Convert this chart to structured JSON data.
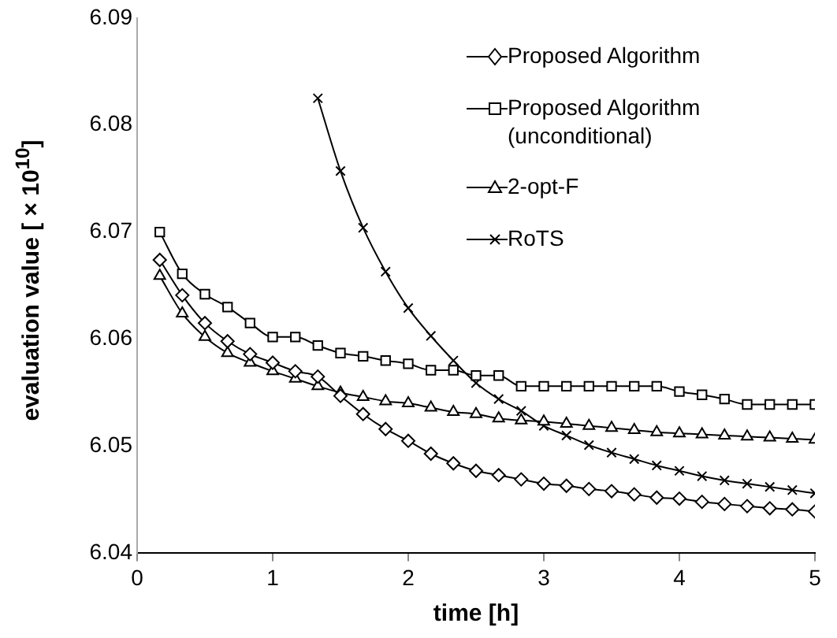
{
  "chart_data": {
    "type": "line",
    "xlabel": "time [h]",
    "ylabel": "evaluation value [ × 10$^{10}$]",
    "x": [
      0.167,
      0.333,
      0.5,
      0.667,
      0.833,
      1,
      1.167,
      1.333,
      1.5,
      1.667,
      1.833,
      2,
      2.167,
      2.333,
      2.5,
      2.667,
      2.833,
      3,
      3.167,
      3.333,
      3.5,
      3.667,
      3.833,
      4,
      4.167,
      4.333,
      4.5,
      4.667,
      4.833,
      5
    ],
    "series": [
      {
        "name": "Proposed Algorithm",
        "color": "#000000",
        "marker": "diamond",
        "values": [
          6.0674,
          6.0641,
          6.0615,
          6.0598,
          6.0586,
          6.0578,
          6.057,
          6.0565,
          6.0547,
          6.053,
          6.0516,
          6.0505,
          6.0493,
          6.0484,
          6.0477,
          6.0473,
          6.0469,
          6.0465,
          6.0463,
          6.046,
          6.0458,
          6.0455,
          6.0452,
          6.0451,
          6.0448,
          6.0446,
          6.0444,
          6.0442,
          6.0441,
          6.0439
        ]
      },
      {
        "name": "Proposed Algorithm (unconditional)",
        "color": "#000000",
        "marker": "square",
        "values": [
          6.07,
          6.0661,
          6.0642,
          6.063,
          6.0615,
          6.0602,
          6.0602,
          6.0594,
          6.0587,
          6.0584,
          6.058,
          6.0577,
          6.0571,
          6.0571,
          6.0566,
          6.0566,
          6.0556,
          6.0556,
          6.0556,
          6.0556,
          6.0556,
          6.0556,
          6.0556,
          6.0551,
          6.0548,
          6.0544,
          6.0539,
          6.0539,
          6.0539,
          6.0539
        ]
      },
      {
        "name": "2-opt-F",
        "color": "#000000",
        "marker": "triangle",
        "values": [
          6.0659,
          6.0624,
          6.0602,
          6.0587,
          6.0578,
          6.057,
          6.0563,
          6.0556,
          6.055,
          6.0546,
          6.0542,
          6.054,
          6.0536,
          6.0532,
          6.053,
          6.0526,
          6.0524,
          6.0523,
          6.0521,
          6.0519,
          6.0517,
          6.0515,
          6.0513,
          6.0512,
          6.0511,
          6.051,
          6.0509,
          6.0508,
          6.0507,
          6.0506
        ]
      },
      {
        "name": "RoTS",
        "color": "#000000",
        "marker": "cross",
        "values": [
          null,
          null,
          null,
          null,
          null,
          null,
          null,
          6.0825,
          6.0757,
          6.0704,
          6.0663,
          6.0629,
          6.0603,
          6.058,
          6.0559,
          6.0544,
          6.0533,
          6.0519,
          6.051,
          6.0501,
          6.0494,
          6.0488,
          6.0482,
          6.0477,
          6.0472,
          6.0468,
          6.0465,
          6.0462,
          6.0459,
          6.0456
        ]
      }
    ],
    "xlim": [
      0,
      5
    ],
    "xticks": [
      0,
      1,
      2,
      3,
      4,
      5
    ],
    "ylim": [
      6.04,
      6.09
    ],
    "yticks": [
      6.04,
      6.05,
      6.06,
      6.07,
      6.08,
      6.09
    ],
    "grid": false,
    "legend": "top right"
  }
}
